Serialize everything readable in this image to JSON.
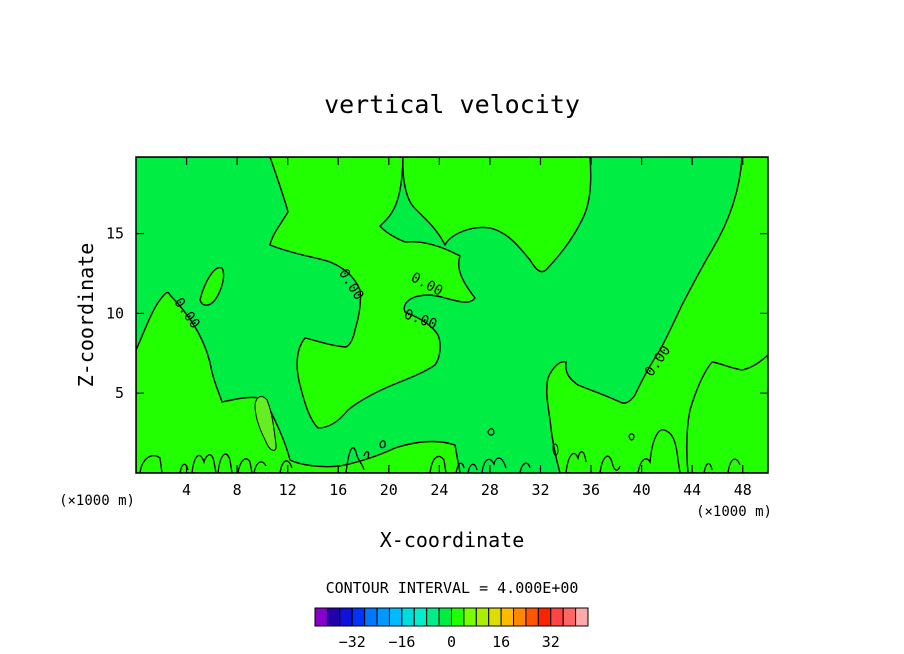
{
  "chart_data": {
    "type": "heatmap",
    "title": "vertical velocity",
    "xlabel": "X-coordinate",
    "ylabel": "Z-coordinate",
    "x_units": "(×1000 m)",
    "x_units_right": "(×1000 m)",
    "xlim": [
      0,
      50
    ],
    "ylim": [
      0,
      19.8
    ],
    "x_ticks": [
      4,
      8,
      12,
      16,
      20,
      24,
      28,
      32,
      36,
      40,
      44,
      48
    ],
    "y_ticks": [
      5,
      10,
      15
    ],
    "x_tick_labels": [
      "4",
      "8",
      "12",
      "16",
      "20",
      "24",
      "28",
      "32",
      "36",
      "40",
      "44",
      "48"
    ],
    "y_tick_labels": [
      "5",
      "10",
      "15"
    ],
    "contour_interval_text": "CONTOUR INTERVAL = 4.000E+00",
    "contour_interval": 4.0,
    "contour_labels": [
      {
        "text": "0.00",
        "x": 4.0,
        "y": 10.0,
        "angle": 55
      },
      {
        "text": "0.00",
        "x": 17.0,
        "y": 11.8,
        "angle": 58
      },
      {
        "text": "0.00",
        "x": 23.0,
        "y": 11.8,
        "angle": 28
      },
      {
        "text": "0.00",
        "x": 22.5,
        "y": 9.6,
        "angle": 20
      },
      {
        "text": "0.00",
        "x": 41.3,
        "y": 7.0,
        "angle": -55
      }
    ],
    "regions": {
      "background_value": -2,
      "background_color": "#00ee44",
      "positive_value": 2,
      "positive_color": "#22ff00",
      "peak_value": 6,
      "peak_color": "#66ee22"
    },
    "colorbar": {
      "colors": [
        "#8800cc",
        "#2200aa",
        "#1111dd",
        "#0033ff",
        "#0077ff",
        "#0099ff",
        "#00bbff",
        "#00dddd",
        "#00eecc",
        "#00ee88",
        "#00ee44",
        "#22ff00",
        "#77ff00",
        "#aaee00",
        "#dddd00",
        "#ffbb00",
        "#ff8800",
        "#ff5500",
        "#ff2200",
        "#ff4444",
        "#ff6666",
        "#ffaaaa"
      ],
      "tick_labels": [
        "−32",
        "−16",
        "0",
        "16",
        "32"
      ],
      "tick_values": [
        -32,
        -16,
        0,
        16,
        32
      ],
      "vmin": -44,
      "vmax": 44
    }
  }
}
